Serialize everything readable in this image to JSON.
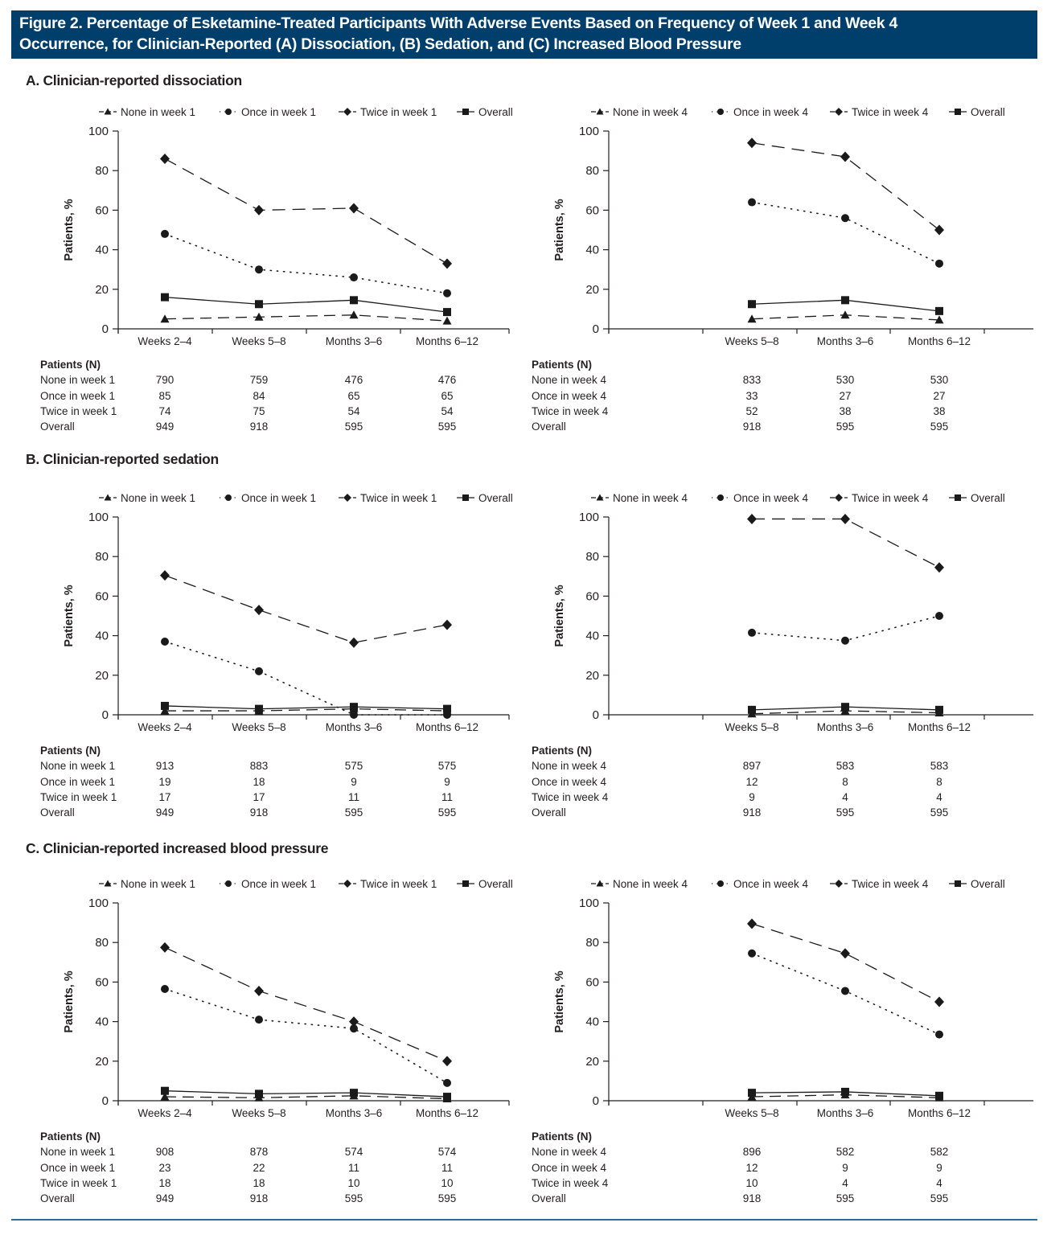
{
  "header": {
    "title_line1": "Figure 2. Percentage of Esketamine-Treated Participants With Adverse Events Based on Frequency of Week 1 and Week 4",
    "title_line2": "Occurrence, for Clinician-Reported (A) Dissociation, (B) Sedation, and (C) Increased Blood Pressure",
    "background_color": "#003f6b"
  },
  "sections": [
    {
      "id": "A",
      "title": "A. Clinician-reported dissociation"
    },
    {
      "id": "B",
      "title": "B. Clinician-reported sedation"
    },
    {
      "id": "C",
      "title": "C. Clinician-reported increased blood pressure"
    }
  ],
  "common": {
    "ylabel": "Patients, %",
    "yticks": [
      "0",
      "20",
      "40",
      "60",
      "80",
      "100"
    ],
    "table_heading": "Patients (N)"
  },
  "chart_data": [
    {
      "panel": "A-left",
      "type": "line",
      "title": "Clinician-reported dissociation (week 1)",
      "xlabel": "",
      "ylabel": "Patients, %",
      "ylim": [
        0,
        100
      ],
      "yticks": [
        0,
        20,
        40,
        60,
        80,
        100
      ],
      "grid": false,
      "legend": "top",
      "categories": [
        "Weeks 2–4",
        "Weeks 5–8",
        "Months 3–6",
        "Months 6–12"
      ],
      "series": [
        {
          "name": "None in week 1",
          "marker": "triangle",
          "style": "dashed",
          "values": [
            5,
            6,
            7,
            4
          ]
        },
        {
          "name": "Once in week 1",
          "marker": "circle",
          "style": "dotted",
          "values": [
            48,
            30,
            26,
            18
          ]
        },
        {
          "name": "Twice in week 1",
          "marker": "diamond",
          "style": "longdash",
          "values": [
            86,
            60,
            61,
            33
          ]
        },
        {
          "name": "Overall",
          "marker": "square",
          "style": "solid",
          "values": [
            16,
            12.5,
            14.5,
            8.5
          ]
        }
      ],
      "n_table": {
        "rows": [
          {
            "label": "None in week 1",
            "values": [
              "790",
              "759",
              "476",
              "476"
            ]
          },
          {
            "label": "Once in week 1",
            "values": [
              "85",
              "84",
              "65",
              "65"
            ]
          },
          {
            "label": "Twice in week 1",
            "values": [
              "74",
              "75",
              "54",
              "54"
            ]
          },
          {
            "label": "Overall",
            "values": [
              "949",
              "918",
              "595",
              "595"
            ]
          }
        ]
      }
    },
    {
      "panel": "A-right",
      "type": "line",
      "title": "Clinician-reported dissociation (week 4)",
      "xlabel": "",
      "ylabel": "Patients, %",
      "ylim": [
        0,
        100
      ],
      "yticks": [
        0,
        20,
        40,
        60,
        80,
        100
      ],
      "grid": false,
      "legend": "top",
      "categories": [
        "",
        "Weeks 5–8",
        "Months 3–6",
        "Months 6–12"
      ],
      "series": [
        {
          "name": "None in week 4",
          "marker": "triangle",
          "style": "dashed",
          "values": [
            null,
            5,
            7,
            4.5
          ]
        },
        {
          "name": "Once in week 4",
          "marker": "circle",
          "style": "dotted",
          "values": [
            null,
            64,
            56,
            33
          ]
        },
        {
          "name": "Twice in week 4",
          "marker": "diamond",
          "style": "longdash",
          "values": [
            null,
            94,
            87,
            50
          ]
        },
        {
          "name": "Overall",
          "marker": "square",
          "style": "solid",
          "values": [
            null,
            12.5,
            14.5,
            9
          ]
        }
      ],
      "n_table": {
        "rows": [
          {
            "label": "None in week 4",
            "values": [
              "",
              "833",
              "530",
              "530"
            ]
          },
          {
            "label": "Once in week 4",
            "values": [
              "",
              "33",
              "27",
              "27"
            ]
          },
          {
            "label": "Twice in week 4",
            "values": [
              "",
              "52",
              "38",
              "38"
            ]
          },
          {
            "label": "Overall",
            "values": [
              "",
              "918",
              "595",
              "595"
            ]
          }
        ]
      }
    },
    {
      "panel": "B-left",
      "type": "line",
      "title": "Clinician-reported sedation (week 1)",
      "xlabel": "",
      "ylabel": "Patients, %",
      "ylim": [
        0,
        100
      ],
      "yticks": [
        0,
        20,
        40,
        60,
        80,
        100
      ],
      "grid": false,
      "legend": "top",
      "categories": [
        "Weeks 2–4",
        "Weeks 5–8",
        "Months 3–6",
        "Months 6–12"
      ],
      "series": [
        {
          "name": "None in week 1",
          "marker": "triangle",
          "style": "dashed",
          "values": [
            2,
            2,
            3,
            2
          ]
        },
        {
          "name": "Once in week 1",
          "marker": "circle",
          "style": "dotted",
          "values": [
            37,
            22,
            0,
            0
          ]
        },
        {
          "name": "Twice in week 1",
          "marker": "diamond",
          "style": "longdash",
          "values": [
            70.5,
            53,
            36.5,
            45.5
          ]
        },
        {
          "name": "Overall",
          "marker": "square",
          "style": "solid",
          "values": [
            4.5,
            3,
            4,
            3
          ]
        }
      ],
      "n_table": {
        "rows": [
          {
            "label": "None in week 1",
            "values": [
              "913",
              "883",
              "575",
              "575"
            ]
          },
          {
            "label": "Once in week 1",
            "values": [
              "19",
              "18",
              "9",
              "9"
            ]
          },
          {
            "label": "Twice in week 1",
            "values": [
              "17",
              "17",
              "11",
              "11"
            ]
          },
          {
            "label": "Overall",
            "values": [
              "949",
              "918",
              "595",
              "595"
            ]
          }
        ]
      }
    },
    {
      "panel": "B-right",
      "type": "line",
      "title": "Clinician-reported sedation (week 4)",
      "xlabel": "",
      "ylabel": "Patients, %",
      "ylim": [
        0,
        100
      ],
      "yticks": [
        0,
        20,
        40,
        60,
        80,
        100
      ],
      "grid": false,
      "legend": "top",
      "categories": [
        "",
        "Weeks 5–8",
        "Months 3–6",
        "Months 6–12"
      ],
      "series": [
        {
          "name": "None in week 4",
          "marker": "triangle",
          "style": "dashed",
          "values": [
            null,
            0.5,
            2,
            1
          ]
        },
        {
          "name": "Once in week 4",
          "marker": "circle",
          "style": "dotted",
          "values": [
            null,
            41.5,
            37.5,
            50
          ]
        },
        {
          "name": "Twice in week 4",
          "marker": "diamond",
          "style": "longdash",
          "values": [
            null,
            99,
            99,
            74.5
          ]
        },
        {
          "name": "Overall",
          "marker": "square",
          "style": "solid",
          "values": [
            null,
            2.5,
            4,
            2.5
          ]
        }
      ],
      "n_table": {
        "rows": [
          {
            "label": "None in week 4",
            "values": [
              "",
              "897",
              "583",
              "583"
            ]
          },
          {
            "label": "Once in week 4",
            "values": [
              "",
              "12",
              "8",
              "8"
            ]
          },
          {
            "label": "Twice in week 4",
            "values": [
              "",
              "9",
              "4",
              "4"
            ]
          },
          {
            "label": "Overall",
            "values": [
              "",
              "918",
              "595",
              "595"
            ]
          }
        ]
      }
    },
    {
      "panel": "C-left",
      "type": "line",
      "title": "Clinician-reported increased blood pressure (week 1)",
      "xlabel": "",
      "ylabel": "Patients, %",
      "ylim": [
        0,
        100
      ],
      "yticks": [
        0,
        20,
        40,
        60,
        80,
        100
      ],
      "grid": false,
      "legend": "top",
      "categories": [
        "Weeks 2–4",
        "Weeks 5–8",
        "Months 3–6",
        "Months 6–12"
      ],
      "series": [
        {
          "name": "None in week 1",
          "marker": "triangle",
          "style": "dashed",
          "values": [
            2,
            1.5,
            2.5,
            1
          ]
        },
        {
          "name": "Once in week 1",
          "marker": "circle",
          "style": "dotted",
          "values": [
            56.5,
            41,
            36.5,
            9
          ]
        },
        {
          "name": "Twice in week 1",
          "marker": "diamond",
          "style": "longdash",
          "values": [
            77.5,
            55.5,
            40,
            20
          ]
        },
        {
          "name": "Overall",
          "marker": "square",
          "style": "solid",
          "values": [
            5,
            3.5,
            4,
            2
          ]
        }
      ],
      "n_table": {
        "rows": [
          {
            "label": "None in week 1",
            "values": [
              "908",
              "878",
              "574",
              "574"
            ]
          },
          {
            "label": "Once in week 1",
            "values": [
              "23",
              "22",
              "11",
              "11"
            ]
          },
          {
            "label": "Twice in week 1",
            "values": [
              "18",
              "18",
              "10",
              "10"
            ]
          },
          {
            "label": "Overall",
            "values": [
              "949",
              "918",
              "595",
              "595"
            ]
          }
        ]
      }
    },
    {
      "panel": "C-right",
      "type": "line",
      "title": "Clinician-reported increased blood pressure (week 4)",
      "xlabel": "",
      "ylabel": "Patients, %",
      "ylim": [
        0,
        100
      ],
      "yticks": [
        0,
        20,
        40,
        60,
        80,
        100
      ],
      "grid": false,
      "legend": "top",
      "categories": [
        "",
        "Weeks 5–8",
        "Months 3–6",
        "Months 6–12"
      ],
      "series": [
        {
          "name": "None in week 4",
          "marker": "triangle",
          "style": "dashed",
          "values": [
            null,
            2,
            3,
            1.5
          ]
        },
        {
          "name": "Once in week 4",
          "marker": "circle",
          "style": "dotted",
          "values": [
            null,
            74.5,
            55.5,
            33.5
          ]
        },
        {
          "name": "Twice in week 4",
          "marker": "diamond",
          "style": "longdash",
          "values": [
            null,
            89.5,
            74.5,
            50
          ]
        },
        {
          "name": "Overall",
          "marker": "square",
          "style": "solid",
          "values": [
            null,
            4,
            4.5,
            2.5
          ]
        }
      ],
      "n_table": {
        "rows": [
          {
            "label": "None in week 4",
            "values": [
              "",
              "896",
              "582",
              "582"
            ]
          },
          {
            "label": "Once in week 4",
            "values": [
              "",
              "12",
              "9",
              "9"
            ]
          },
          {
            "label": "Twice in week 4",
            "values": [
              "",
              "10",
              "4",
              "4"
            ]
          },
          {
            "label": "Overall",
            "values": [
              "",
              "918",
              "595",
              "595"
            ]
          }
        ]
      }
    }
  ]
}
